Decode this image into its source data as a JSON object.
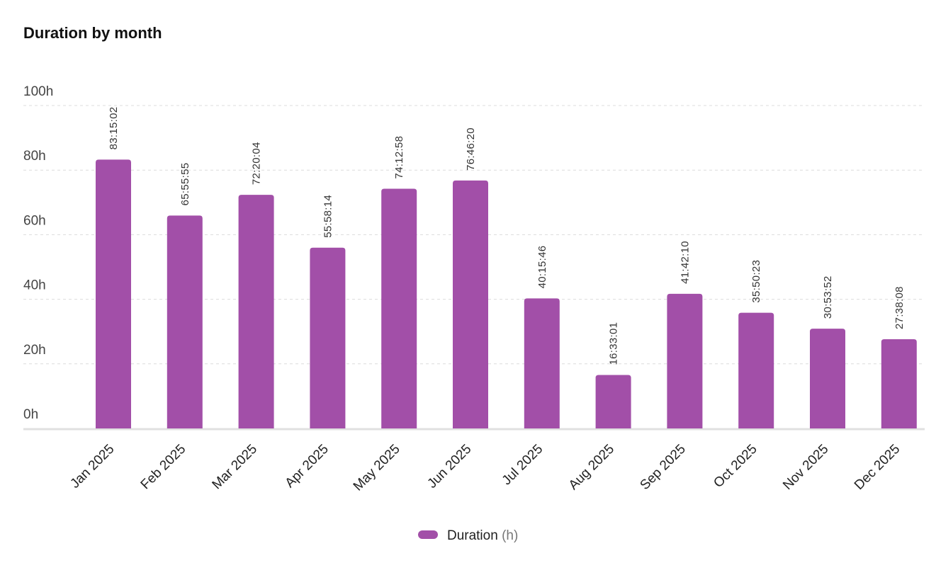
{
  "chart_data": {
    "type": "bar",
    "title": "Duration by month",
    "categories": [
      "Jan 2025",
      "Feb 2025",
      "Mar 2025",
      "Apr 2025",
      "May 2025",
      "Jun 2025",
      "Jul 2025",
      "Aug 2025",
      "Sep 2025",
      "Oct 2025",
      "Nov 2025",
      "Dec 2025"
    ],
    "series": [
      {
        "name": "Duration",
        "unit": "(h)",
        "color": "#a24fa8",
        "values": [
          83.25,
          65.93,
          72.33,
          55.97,
          74.22,
          76.77,
          40.26,
          16.55,
          41.7,
          35.84,
          30.9,
          27.64
        ],
        "labels": [
          "83:15:02",
          "65:55:55",
          "72:20:04",
          "55:58:14",
          "74:12:58",
          "76:46:20",
          "40:15:46",
          "16:33:01",
          "41:42:10",
          "35:50:23",
          "30:53:52",
          "27:38:08"
        ]
      }
    ],
    "ylim": [
      0,
      100
    ],
    "yticks": [
      0,
      20,
      40,
      60,
      80,
      100
    ],
    "ytick_labels": [
      "0h",
      "20h",
      "40h",
      "60h",
      "80h",
      "100h"
    ],
    "grid": true,
    "legend_position": "bottom-center"
  }
}
